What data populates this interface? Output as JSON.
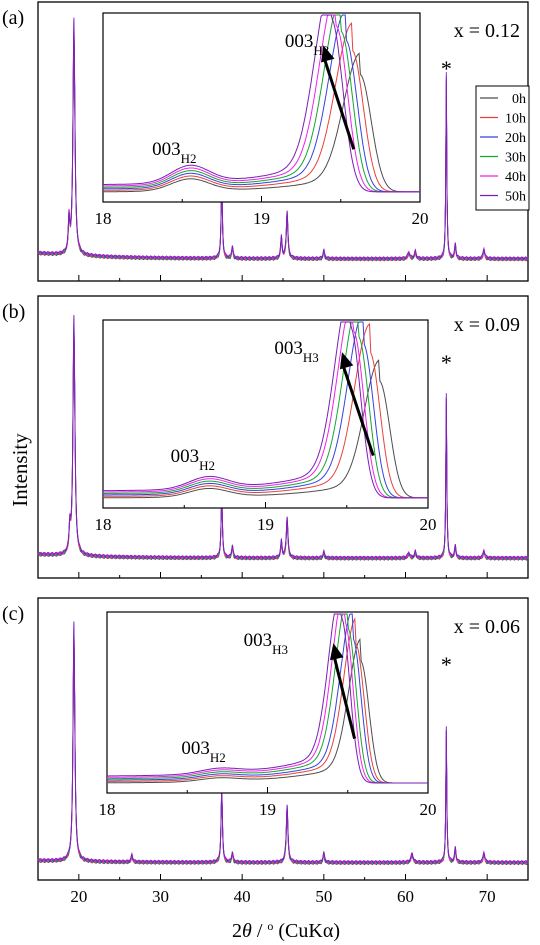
{
  "figure": {
    "ylabel": "Intensity",
    "xlabel_parts": [
      "2",
      "θ",
      " / ",
      "o",
      " (CuKα)"
    ],
    "x_ticks": [
      "20",
      "30",
      "40",
      "50",
      "60",
      "70"
    ]
  },
  "colors": {
    "0h": "#4d4d4d",
    "10h": "#e8413c",
    "20h": "#3344dd",
    "30h": "#17a52e",
    "40h": "#ee22ee",
    "50h": "#7a1fb4"
  },
  "chart_data": [
    {
      "type": "line",
      "panel_label": "(a)",
      "composition": "x = 0.12",
      "x_range": [
        15,
        75
      ],
      "xlabel": "2θ / o (CuKα)",
      "ylabel": "Intensity",
      "legend": {
        "placement": "right",
        "entries": [
          "0h",
          "10h",
          "20h",
          "30h",
          "40h",
          "50h"
        ]
      },
      "peaks_2theta": [
        18.8,
        19.4,
        37.5,
        38.8,
        44.8,
        45.5,
        50.0,
        60.4,
        61.2,
        65.0,
        66.1,
        69.6
      ],
      "star_marker": {
        "label": "*",
        "x": 65.0
      },
      "inset": {
        "x_range": [
          18,
          20
        ],
        "x_ticks": [
          "18",
          "19",
          "20"
        ],
        "peak_labels": [
          {
            "base": "003",
            "sub": "H2",
            "x": 18.55
          },
          {
            "base": "003",
            "sub": "H3",
            "x": 19.45
          }
        ],
        "series": [
          {
            "name": "0h",
            "h3_peak_x": 19.62,
            "h3_peak_rel": 0.68
          },
          {
            "name": "10h",
            "h3_peak_x": 19.57,
            "h3_peak_rel": 0.82
          },
          {
            "name": "20h",
            "h3_peak_x": 19.53,
            "h3_peak_rel": 0.88
          },
          {
            "name": "30h",
            "h3_peak_x": 19.5,
            "h3_peak_rel": 0.93
          },
          {
            "name": "40h",
            "h3_peak_x": 19.47,
            "h3_peak_rel": 0.96
          },
          {
            "name": "50h",
            "h3_peak_x": 19.44,
            "h3_peak_rel": 1.0
          }
        ]
      }
    },
    {
      "type": "line",
      "panel_label": "(b)",
      "composition": "x = 0.09",
      "x_range": [
        15,
        75
      ],
      "peaks_2theta": [
        18.9,
        19.4,
        37.5,
        38.8,
        44.8,
        45.5,
        50.0,
        60.4,
        61.2,
        65.0,
        66.1,
        69.6
      ],
      "star_marker": {
        "label": "*",
        "x": 65.0
      },
      "inset": {
        "x_range": [
          18,
          20
        ],
        "x_ticks": [
          "18",
          "19",
          "20"
        ],
        "peak_labels": [
          {
            "base": "003",
            "sub": "H2",
            "x": 18.65
          },
          {
            "base": "003",
            "sub": "H3",
            "x": 19.35
          }
        ],
        "series": [
          {
            "name": "0h",
            "h3_peak_x": 19.7,
            "h3_peak_rel": 0.68
          },
          {
            "name": "10h",
            "h3_peak_x": 19.64,
            "h3_peak_rel": 0.85
          },
          {
            "name": "20h",
            "h3_peak_x": 19.6,
            "h3_peak_rel": 0.9
          },
          {
            "name": "30h",
            "h3_peak_x": 19.57,
            "h3_peak_rel": 0.94
          },
          {
            "name": "40h",
            "h3_peak_x": 19.54,
            "h3_peak_rel": 0.97
          },
          {
            "name": "50h",
            "h3_peak_x": 19.52,
            "h3_peak_rel": 1.0
          }
        ]
      }
    },
    {
      "type": "line",
      "panel_label": "(c)",
      "composition": "x = 0.06",
      "x_range": [
        15,
        75
      ],
      "peaks_2theta": [
        19.4,
        26.5,
        37.5,
        38.8,
        45.5,
        50.0,
        60.8,
        65.0,
        66.1,
        69.6
      ],
      "star_marker": {
        "label": "*",
        "x": 65.0
      },
      "inset": {
        "x_range": [
          18,
          20
        ],
        "x_ticks": [
          "18",
          "19",
          "20"
        ],
        "peak_labels": [
          {
            "base": "003",
            "sub": "H2",
            "x": 18.7
          },
          {
            "base": "003",
            "sub": "H3",
            "x": 19.15
          }
        ],
        "series": [
          {
            "name": "0h",
            "h3_peak_x": 19.58,
            "h3_peak_rel": 0.74
          },
          {
            "name": "10h",
            "h3_peak_x": 19.55,
            "h3_peak_rel": 0.84
          },
          {
            "name": "20h",
            "h3_peak_x": 19.53,
            "h3_peak_rel": 0.88
          },
          {
            "name": "30h",
            "h3_peak_x": 19.5,
            "h3_peak_rel": 0.94
          },
          {
            "name": "40h",
            "h3_peak_x": 19.48,
            "h3_peak_rel": 0.98
          },
          {
            "name": "50h",
            "h3_peak_x": 19.46,
            "h3_peak_rel": 1.0
          }
        ]
      }
    }
  ]
}
